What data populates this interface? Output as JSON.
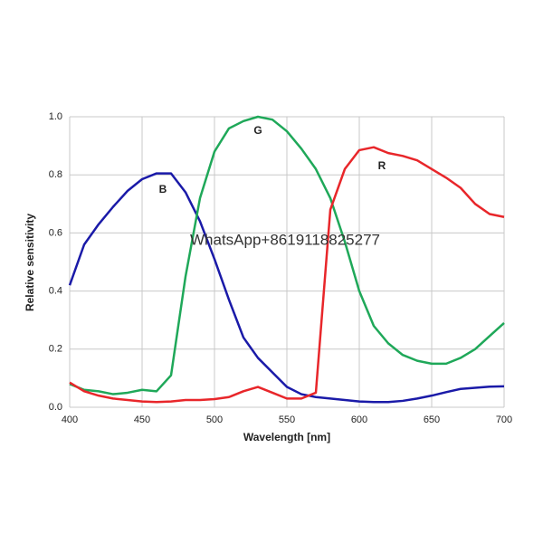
{
  "chart_data": {
    "type": "line",
    "x_label": "Wavelength [nm]",
    "y_label": "Relative sensitivity",
    "watermark": "WhatsApp+8619118825277",
    "x": [
      400,
      410,
      420,
      430,
      440,
      450,
      460,
      470,
      480,
      490,
      500,
      510,
      520,
      530,
      540,
      550,
      560,
      570,
      580,
      590,
      600,
      610,
      620,
      630,
      640,
      650,
      660,
      670,
      680,
      690,
      700
    ],
    "series": [
      {
        "name": "B",
        "color": "#1a1aa8",
        "values": [
          0.42,
          0.56,
          0.63,
          0.69,
          0.745,
          0.785,
          0.805,
          0.805,
          0.74,
          0.64,
          0.51,
          0.37,
          0.24,
          0.17,
          0.12,
          0.07,
          0.045,
          0.035,
          0.03,
          0.025,
          0.02,
          0.018,
          0.018,
          0.022,
          0.03,
          0.04,
          0.052,
          0.063,
          0.067,
          0.071,
          0.072
        ]
      },
      {
        "name": "G",
        "color": "#1fa859",
        "values": [
          0.08,
          0.06,
          0.055,
          0.045,
          0.05,
          0.06,
          0.055,
          0.11,
          0.45,
          0.72,
          0.88,
          0.96,
          0.985,
          1.0,
          0.99,
          0.95,
          0.89,
          0.82,
          0.72,
          0.57,
          0.4,
          0.28,
          0.22,
          0.18,
          0.16,
          0.15,
          0.15,
          0.17,
          0.2,
          0.245,
          0.29
        ]
      },
      {
        "name": "R",
        "color": "#e8262a",
        "values": [
          0.085,
          0.055,
          0.04,
          0.03,
          0.025,
          0.02,
          0.018,
          0.02,
          0.025,
          0.025,
          0.028,
          0.035,
          0.055,
          0.07,
          0.05,
          0.03,
          0.03,
          0.05,
          0.68,
          0.82,
          0.885,
          0.895,
          0.875,
          0.865,
          0.85,
          0.82,
          0.79,
          0.755,
          0.7,
          0.665,
          0.655
        ]
      }
    ],
    "xlim": [
      400,
      700
    ],
    "xticks": [
      400,
      450,
      500,
      550,
      600,
      650,
      700
    ],
    "ylim": [
      0,
      1
    ],
    "yticks": [
      {
        "value": 0,
        "label": "0.0"
      },
      {
        "value": 0.2,
        "label": "0.2"
      },
      {
        "value": 0.4,
        "label": "0.4"
      },
      {
        "value": 0.6,
        "label": "0.6"
      },
      {
        "value": 0.8,
        "label": "0.8"
      },
      {
        "value": 1,
        "label": "1.0"
      }
    ],
    "grid": true
  }
}
